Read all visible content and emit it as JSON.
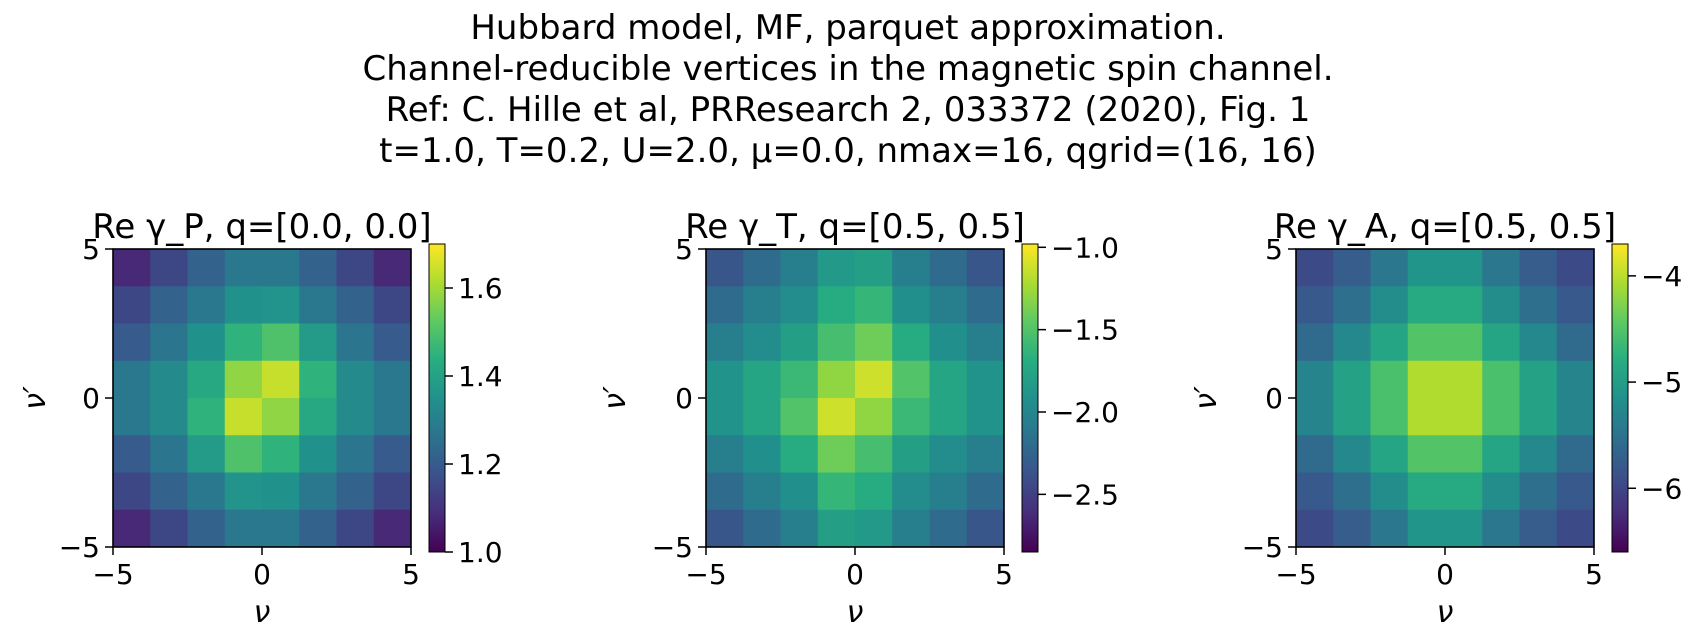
{
  "suptitle": [
    "Hubbard model, MF, parquet approximation.",
    "Channel-reducible vertices in the magnetic spin channel.",
    "Ref: C. Hille et al, PRResearch 2, 033372 (2020), Fig. 1",
    "t=1.0, T=0.2, U=2.0, μ=0.0, nmax=16, qgrid=(16, 16)"
  ],
  "colormap": "viridis",
  "chart_data": [
    {
      "type": "heatmap",
      "title": "Re γ_P, q=[0.0, 0.0]",
      "xlabel": "ν",
      "ylabel": "ν′",
      "xlim": [
        -5,
        5
      ],
      "ylim": [
        -5,
        5
      ],
      "xticks": [
        "−5",
        "0",
        "5"
      ],
      "yticks": [
        "−5",
        "0",
        "5"
      ],
      "colorbar": {
        "vmin": 1.0,
        "vmax": 1.7,
        "ticks": [
          1.0,
          1.2,
          1.4,
          1.6
        ],
        "tick_labels": [
          "1.0",
          "1.2",
          "1.4",
          "1.6"
        ]
      },
      "rows_top_to_bottom": [
        [
          1.08,
          1.15,
          1.22,
          1.28,
          1.28,
          1.22,
          1.15,
          1.08
        ],
        [
          1.15,
          1.22,
          1.28,
          1.35,
          1.36,
          1.28,
          1.22,
          1.15
        ],
        [
          1.2,
          1.27,
          1.35,
          1.45,
          1.5,
          1.38,
          1.27,
          1.2
        ],
        [
          1.28,
          1.33,
          1.42,
          1.58,
          1.64,
          1.45,
          1.33,
          1.28
        ],
        [
          1.28,
          1.33,
          1.45,
          1.64,
          1.58,
          1.42,
          1.33,
          1.28
        ],
        [
          1.2,
          1.27,
          1.38,
          1.5,
          1.45,
          1.35,
          1.27,
          1.2
        ],
        [
          1.15,
          1.22,
          1.28,
          1.36,
          1.35,
          1.28,
          1.22,
          1.15
        ],
        [
          1.08,
          1.15,
          1.22,
          1.28,
          1.28,
          1.22,
          1.15,
          1.08
        ]
      ]
    },
    {
      "type": "heatmap",
      "title": "Re γ_T, q=[0.5, 0.5]",
      "xlabel": "ν",
      "ylabel": "ν′",
      "xlim": [
        -5,
        5
      ],
      "ylim": [
        -5,
        5
      ],
      "xticks": [
        "−5",
        "0",
        "5"
      ],
      "yticks": [
        "−5",
        "0",
        "5"
      ],
      "colorbar": {
        "vmin": -2.85,
        "vmax": -0.98,
        "ticks": [
          -1.0,
          -1.5,
          -2.0,
          -2.5
        ],
        "tick_labels": [
          "−1.0",
          "−1.5",
          "−2.0",
          "−2.5"
        ]
      },
      "rows_top_to_bottom": [
        [
          -2.35,
          -2.2,
          -2.05,
          -1.85,
          -1.8,
          -2.05,
          -2.2,
          -2.35
        ],
        [
          -2.2,
          -2.05,
          -1.95,
          -1.7,
          -1.62,
          -1.92,
          -2.05,
          -2.2
        ],
        [
          -2.05,
          -1.95,
          -1.8,
          -1.55,
          -1.4,
          -1.7,
          -1.92,
          -2.05
        ],
        [
          -1.9,
          -1.75,
          -1.6,
          -1.3,
          -1.12,
          -1.5,
          -1.75,
          -1.9
        ],
        [
          -1.9,
          -1.75,
          -1.5,
          -1.12,
          -1.3,
          -1.6,
          -1.75,
          -1.9
        ],
        [
          -2.05,
          -1.92,
          -1.7,
          -1.4,
          -1.55,
          -1.8,
          -1.95,
          -2.05
        ],
        [
          -2.2,
          -2.05,
          -1.92,
          -1.62,
          -1.7,
          -1.95,
          -2.05,
          -2.2
        ],
        [
          -2.35,
          -2.2,
          -2.05,
          -1.8,
          -1.85,
          -2.05,
          -2.2,
          -2.35
        ]
      ]
    },
    {
      "type": "heatmap",
      "title": "Re γ_A, q=[0.5, 0.5]",
      "xlabel": "ν",
      "ylabel": "ν′",
      "xlim": [
        -5,
        5
      ],
      "ylim": [
        -5,
        5
      ],
      "xticks": [
        "−5",
        "0",
        "5"
      ],
      "yticks": [
        "−5",
        "0",
        "5"
      ],
      "colorbar": {
        "vmin": -6.6,
        "vmax": -3.7,
        "ticks": [
          -4,
          -5,
          -6
        ],
        "tick_labels": [
          "−4",
          "−5",
          "−6"
        ]
      },
      "rows_top_to_bottom": [
        [
          -5.95,
          -5.75,
          -5.45,
          -5.1,
          -5.1,
          -5.45,
          -5.75,
          -5.95
        ],
        [
          -5.8,
          -5.55,
          -5.2,
          -4.85,
          -4.85,
          -5.2,
          -5.55,
          -5.8
        ],
        [
          -5.6,
          -5.25,
          -4.9,
          -4.5,
          -4.5,
          -4.9,
          -5.25,
          -5.6
        ],
        [
          -5.3,
          -4.95,
          -4.55,
          -4.05,
          -4.05,
          -4.55,
          -4.95,
          -5.3
        ],
        [
          -5.3,
          -4.95,
          -4.55,
          -4.05,
          -4.05,
          -4.55,
          -4.95,
          -5.3
        ],
        [
          -5.6,
          -5.25,
          -4.9,
          -4.5,
          -4.5,
          -4.9,
          -5.25,
          -5.6
        ],
        [
          -5.8,
          -5.55,
          -5.2,
          -4.85,
          -4.85,
          -5.2,
          -5.55,
          -5.8
        ],
        [
          -5.95,
          -5.75,
          -5.45,
          -5.1,
          -5.1,
          -5.45,
          -5.75,
          -5.95
        ]
      ]
    }
  ]
}
